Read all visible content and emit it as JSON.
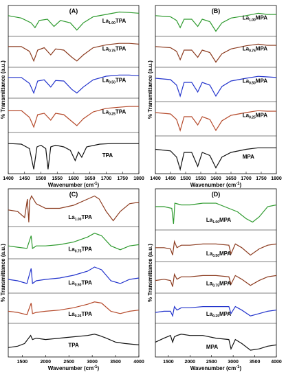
{
  "colors": {
    "green": "#2e9a2e",
    "brown": "#8b3a1e",
    "blue": "#2233cc",
    "rust": "#b5492a",
    "black": "#111111"
  },
  "chart_data": [
    {
      "type": "line",
      "panel": "(A)",
      "xlabel": "Wavenumber (cm",
      "xlabel_sup": "-1",
      "xlabel_end": ")",
      "ylabel": "% Transmittance (a.u.)",
      "xlim": [
        1400,
        1800
      ],
      "xticks": [
        "1400",
        "1450",
        "1500",
        "1550",
        "1600",
        "1650",
        "1700",
        "1750",
        "1800"
      ],
      "series": [
        {
          "label_main": "La",
          "label_sub": "1.00",
          "label_end": "TPA",
          "color": "green",
          "x": [
            1400,
            1440,
            1470,
            1482,
            1495,
            1520,
            1540,
            1560,
            1590,
            1610,
            1630,
            1660,
            1700,
            1740,
            1770,
            1800
          ],
          "y": [
            0.25,
            0.35,
            0.55,
            0.75,
            0.45,
            0.4,
            0.7,
            0.45,
            0.55,
            0.85,
            0.55,
            0.3,
            0.2,
            0.1,
            0.12,
            0.15
          ]
        },
        {
          "label_main": "La",
          "label_sub": "0.75",
          "label_end": "TPA",
          "color": "brown",
          "x": [
            1400,
            1440,
            1465,
            1478,
            1490,
            1510,
            1530,
            1545,
            1570,
            1595,
            1610,
            1630,
            1660,
            1700,
            1740,
            1770,
            1800
          ],
          "y": [
            0.25,
            0.25,
            0.45,
            0.85,
            0.4,
            0.3,
            0.6,
            0.35,
            0.4,
            0.7,
            0.85,
            0.6,
            0.3,
            0.18,
            0.12,
            0.12,
            0.15
          ]
        },
        {
          "label_main": "La",
          "label_sub": "0.50",
          "label_end": "TPA",
          "color": "blue",
          "x": [
            1400,
            1440,
            1465,
            1478,
            1490,
            1510,
            1530,
            1545,
            1570,
            1595,
            1610,
            1630,
            1660,
            1700,
            1740,
            1770,
            1800
          ],
          "y": [
            0.25,
            0.25,
            0.5,
            0.9,
            0.4,
            0.35,
            0.65,
            0.38,
            0.4,
            0.75,
            0.9,
            0.65,
            0.35,
            0.2,
            0.15,
            0.15,
            0.18
          ]
        },
        {
          "label_main": "La",
          "label_sub": "0.25",
          "label_end": "TPA",
          "color": "rust",
          "x": [
            1400,
            1440,
            1465,
            1478,
            1490,
            1510,
            1530,
            1545,
            1570,
            1595,
            1610,
            1630,
            1660,
            1700,
            1740,
            1770,
            1800
          ],
          "y": [
            0.3,
            0.3,
            0.55,
            0.9,
            0.45,
            0.4,
            0.65,
            0.4,
            0.45,
            0.7,
            0.85,
            0.6,
            0.35,
            0.22,
            0.18,
            0.15,
            0.15
          ]
        },
        {
          "label_main": "",
          "label_sub": "",
          "label_end": "TPA",
          "color": "black",
          "x": [
            1400,
            1440,
            1465,
            1478,
            1488,
            1500,
            1515,
            1522,
            1530,
            1545,
            1570,
            1590,
            1605,
            1615,
            1625,
            1640,
            1680,
            1720,
            1760,
            1800
          ],
          "y": [
            0.2,
            0.22,
            0.35,
            0.95,
            0.3,
            0.25,
            0.35,
            0.95,
            0.3,
            0.25,
            0.3,
            0.4,
            0.7,
            0.45,
            0.6,
            0.3,
            0.22,
            0.2,
            0.2,
            0.2
          ]
        }
      ]
    },
    {
      "type": "line",
      "panel": "(B)",
      "xlabel": "Wavenumber (cm",
      "xlabel_sup": "-1",
      "xlabel_end": ")",
      "ylabel": "% Transmittance (a.u.)",
      "xlim": [
        1400,
        1800
      ],
      "xticks": [
        "1400",
        "1450",
        "1500",
        "1550",
        "1600",
        "1650",
        "1700",
        "1750",
        "1800"
      ],
      "series": [
        {
          "label_main": "La",
          "label_sub": "1.00",
          "label_end": "MPA",
          "color": "green",
          "x": [
            1400,
            1450,
            1470,
            1482,
            1495,
            1520,
            1540,
            1555,
            1580,
            1600,
            1620,
            1650,
            1700,
            1740,
            1770,
            1800
          ],
          "y": [
            0.25,
            0.3,
            0.45,
            0.75,
            0.4,
            0.4,
            0.7,
            0.4,
            0.5,
            0.9,
            0.55,
            0.35,
            0.25,
            0.15,
            0.2,
            0.2
          ]
        },
        {
          "label_main": "La",
          "label_sub": "0.75",
          "label_end": "MPA",
          "color": "brown",
          "x": [
            1400,
            1450,
            1470,
            1482,
            1495,
            1520,
            1540,
            1555,
            1580,
            1600,
            1620,
            1650,
            1700,
            1740,
            1770,
            1800
          ],
          "y": [
            0.25,
            0.3,
            0.45,
            0.8,
            0.4,
            0.4,
            0.7,
            0.4,
            0.5,
            0.9,
            0.55,
            0.35,
            0.22,
            0.15,
            0.2,
            0.2
          ]
        },
        {
          "label_main": "La",
          "label_sub": "0.50",
          "label_end": "MPA",
          "color": "blue",
          "x": [
            1400,
            1450,
            1470,
            1482,
            1495,
            1520,
            1540,
            1555,
            1580,
            1600,
            1620,
            1650,
            1700,
            1740,
            1770,
            1800
          ],
          "y": [
            0.25,
            0.3,
            0.5,
            0.9,
            0.4,
            0.4,
            0.75,
            0.4,
            0.5,
            0.9,
            0.55,
            0.35,
            0.25,
            0.18,
            0.2,
            0.22
          ]
        },
        {
          "label_main": "La",
          "label_sub": "0.25",
          "label_end": "MPA",
          "color": "rust",
          "x": [
            1400,
            1450,
            1470,
            1482,
            1495,
            1520,
            1540,
            1555,
            1580,
            1600,
            1620,
            1650,
            1700,
            1740,
            1770,
            1800
          ],
          "y": [
            0.25,
            0.3,
            0.5,
            0.9,
            0.4,
            0.4,
            0.7,
            0.4,
            0.5,
            0.9,
            0.55,
            0.35,
            0.25,
            0.18,
            0.2,
            0.2
          ]
        },
        {
          "label_main": "",
          "label_sub": "",
          "label_end": "MPA",
          "color": "black",
          "x": [
            1400,
            1450,
            1470,
            1482,
            1495,
            1520,
            1540,
            1555,
            1580,
            1600,
            1620,
            1650,
            1700,
            1740,
            1770,
            1800
          ],
          "y": [
            0.3,
            0.35,
            0.55,
            0.95,
            0.4,
            0.4,
            0.85,
            0.4,
            0.5,
            0.9,
            0.55,
            0.4,
            0.3,
            0.25,
            0.25,
            0.25
          ]
        }
      ]
    },
    {
      "type": "line",
      "panel": "(C)",
      "xlabel": "Wavenumber (cm",
      "xlabel_sup": "-1",
      "xlabel_end": ")",
      "ylabel": "% Transmittance (a.u.)",
      "xlim": [
        1200,
        4000
      ],
      "xticks": [
        "1500",
        "2000",
        "2500",
        "3000",
        "3500",
        "4000"
      ],
      "series": [
        {
          "label_main": "La",
          "label_sub": "1.00",
          "label_end": "TPA",
          "color": "brown",
          "x": [
            1200,
            1400,
            1550,
            1610,
            1640,
            1660,
            1700,
            1800,
            2000,
            2300,
            2600,
            2900,
            3050,
            3150,
            3300,
            3450,
            3600,
            3800,
            4000
          ],
          "y": [
            0.55,
            0.6,
            0.8,
            0.2,
            0.95,
            0.25,
            0.1,
            0.35,
            0.5,
            0.5,
            0.4,
            0.2,
            0.1,
            0.2,
            0.6,
            0.9,
            0.6,
            0.35,
            0.3
          ]
        },
        {
          "label_main": "La",
          "label_sub": "0.75",
          "label_end": "TPA",
          "color": "green",
          "x": [
            1200,
            1400,
            1600,
            1690,
            1720,
            1800,
            2000,
            2300,
            2600,
            2900,
            3050,
            3200,
            3400,
            3600,
            3800,
            4000
          ],
          "y": [
            0.6,
            0.65,
            0.7,
            0.2,
            0.7,
            0.6,
            0.6,
            0.55,
            0.45,
            0.25,
            0.1,
            0.2,
            0.6,
            0.75,
            0.6,
            0.55
          ]
        },
        {
          "label_main": "La",
          "label_sub": "0.50",
          "label_end": "TPA",
          "color": "blue",
          "x": [
            1200,
            1400,
            1600,
            1690,
            1720,
            1800,
            2000,
            2300,
            2600,
            2900,
            3050,
            3200,
            3400,
            3600,
            3800,
            4000
          ],
          "y": [
            0.6,
            0.65,
            0.75,
            0.2,
            0.75,
            0.65,
            0.6,
            0.55,
            0.45,
            0.3,
            0.15,
            0.25,
            0.65,
            0.75,
            0.6,
            0.55
          ]
        },
        {
          "label_main": "La",
          "label_sub": "0.25",
          "label_end": "TPA",
          "color": "rust",
          "x": [
            1200,
            1400,
            1600,
            1690,
            1720,
            1800,
            2000,
            2300,
            2600,
            2900,
            3050,
            3200,
            3400,
            3600,
            3800,
            4000
          ],
          "y": [
            0.6,
            0.65,
            0.75,
            0.25,
            0.7,
            0.65,
            0.6,
            0.55,
            0.45,
            0.3,
            0.2,
            0.25,
            0.6,
            0.7,
            0.6,
            0.55
          ]
        },
        {
          "label_main": "",
          "label_sub": "",
          "label_end": "TPA",
          "color": "black",
          "x": [
            1200,
            1400,
            1550,
            1680,
            1720,
            1800,
            2000,
            2300,
            2600,
            2900,
            3050,
            3150,
            3300,
            3500,
            3700,
            4000
          ],
          "y": [
            0.75,
            0.7,
            0.6,
            0.3,
            0.45,
            0.4,
            0.45,
            0.4,
            0.35,
            0.3,
            0.25,
            0.3,
            0.4,
            0.55,
            0.6,
            0.65
          ]
        }
      ]
    },
    {
      "type": "line",
      "panel": "(D)",
      "xlabel": "Wavenumber (cm",
      "xlabel_sup": "-1",
      "xlabel_end": ")",
      "ylabel": "% Transmittance (a.u.)",
      "xlim": [
        1200,
        4000
      ],
      "xticks": [
        "1500",
        "2000",
        "2500",
        "3000",
        "3500",
        "4000"
      ],
      "series": [
        {
          "label_main": "La",
          "label_sub": "1.00",
          "label_end": "MPA",
          "color": "green",
          "x": [
            1200,
            1400,
            1580,
            1620,
            1650,
            1800,
            2000,
            2300,
            2600,
            2900,
            3100,
            3300,
            3450,
            3600,
            3800,
            4000
          ],
          "y": [
            0.4,
            0.4,
            0.45,
            0.9,
            0.3,
            0.35,
            0.35,
            0.3,
            0.3,
            0.45,
            0.55,
            0.75,
            0.85,
            0.7,
            0.4,
            0.35
          ]
        },
        {
          "label_main": "La",
          "label_sub": "0.50",
          "label_end": "MPA",
          "color": "brown",
          "x": [
            1200,
            1400,
            1550,
            1600,
            1640,
            1700,
            1800,
            2000,
            2300,
            2600,
            2900,
            2950,
            3050,
            3200,
            3400,
            3600,
            3800,
            4000
          ],
          "y": [
            0.55,
            0.55,
            0.6,
            0.85,
            0.3,
            0.55,
            0.45,
            0.45,
            0.4,
            0.4,
            0.45,
            0.8,
            0.4,
            0.55,
            0.85,
            0.6,
            0.45,
            0.4
          ]
        },
        {
          "label_main": "La",
          "label_sub": "0.75",
          "label_end": "MPA",
          "color": "brown",
          "x": [
            1200,
            1400,
            1550,
            1600,
            1640,
            1700,
            1800,
            2000,
            2300,
            2600,
            2900,
            2950,
            3050,
            3200,
            3400,
            3600,
            3800,
            4000
          ],
          "y": [
            0.6,
            0.55,
            0.6,
            0.85,
            0.35,
            0.55,
            0.45,
            0.45,
            0.4,
            0.4,
            0.45,
            0.75,
            0.4,
            0.55,
            0.8,
            0.6,
            0.45,
            0.4
          ]
        },
        {
          "label_main": "La",
          "label_sub": "0.25",
          "label_end": "MPA",
          "color": "blue",
          "x": [
            1200,
            1400,
            1550,
            1600,
            1640,
            1700,
            1800,
            2000,
            2300,
            2600,
            2900,
            2950,
            3050,
            3200,
            3400,
            3600,
            3800,
            4000
          ],
          "y": [
            0.65,
            0.6,
            0.6,
            0.8,
            0.4,
            0.55,
            0.45,
            0.45,
            0.4,
            0.4,
            0.4,
            0.7,
            0.4,
            0.55,
            0.8,
            0.7,
            0.6,
            0.55
          ]
        },
        {
          "label_main": "",
          "label_sub": "",
          "label_end": "MPA",
          "color": "black",
          "x": [
            1200,
            1400,
            1550,
            1600,
            1640,
            1700,
            1800,
            2000,
            2300,
            2600,
            2900,
            2950,
            3050,
            3200,
            3400,
            3600,
            3800,
            4000
          ],
          "y": [
            0.55,
            0.4,
            0.3,
            0.55,
            0.35,
            0.3,
            0.25,
            0.3,
            0.3,
            0.4,
            0.45,
            0.8,
            0.45,
            0.6,
            0.85,
            0.8,
            0.7,
            0.65
          ]
        }
      ]
    }
  ]
}
